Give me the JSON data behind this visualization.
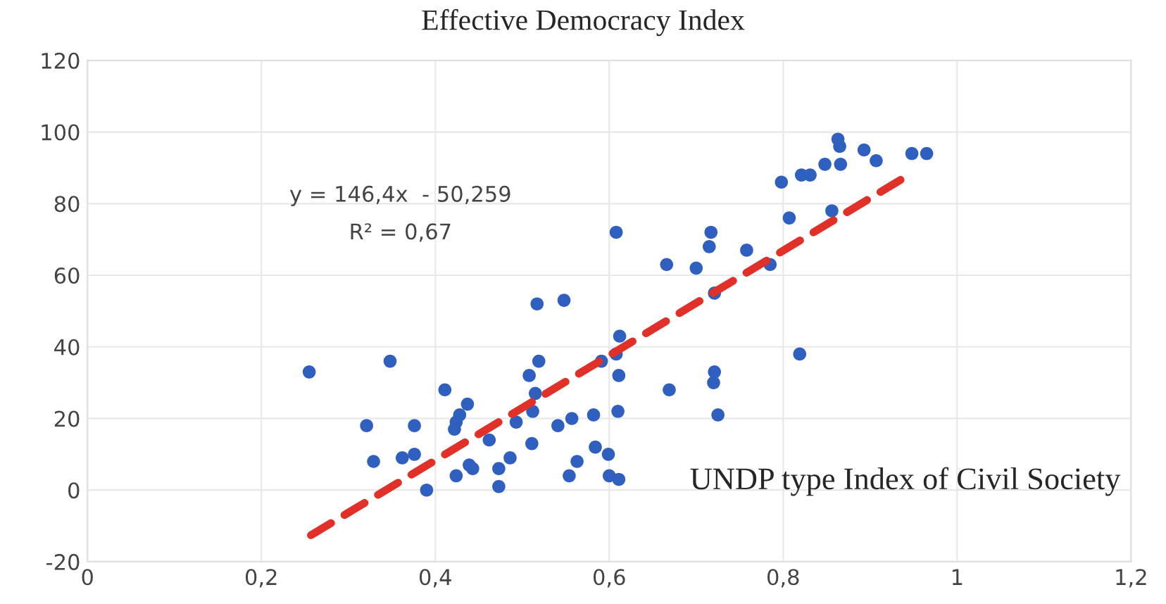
{
  "chart_data": {
    "type": "scatter",
    "title": "Effective Democracy Index",
    "xlabel": "UNDP type Index of Civil Society",
    "annotations": [
      "y = 146,4x  - 50,259",
      "R² = 0,67"
    ],
    "series": [
      {
        "color": "#2f5fbf",
        "marker": "circle",
        "x": [
          0.255,
          0.321,
          0.329,
          0.348,
          0.362,
          0.376,
          0.376,
          0.39,
          0.411,
          0.422,
          0.424,
          0.428,
          0.437,
          0.424,
          0.439,
          0.443,
          0.462,
          0.473,
          0.473,
          0.486,
          0.493,
          0.508,
          0.512,
          0.511,
          0.515,
          0.517,
          0.519,
          0.541,
          0.548,
          0.554,
          0.557,
          0.563,
          0.582,
          0.584,
          0.591,
          0.599,
          0.6,
          0.608,
          0.608,
          0.61,
          0.611,
          0.612,
          0.611,
          0.666,
          0.669,
          0.7,
          0.715,
          0.717,
          0.72,
          0.721,
          0.721,
          0.725,
          0.758,
          0.785,
          0.798,
          0.807,
          0.819,
          0.821,
          0.831,
          0.848,
          0.856,
          0.863,
          0.865,
          0.866,
          0.893,
          0.907,
          0.948,
          0.965
        ],
        "values": [
          33,
          18,
          8,
          36,
          9,
          18,
          10,
          0,
          28,
          17,
          19,
          21,
          24,
          4,
          7,
          6,
          14,
          6,
          1,
          9,
          19,
          32,
          22,
          13,
          27,
          52,
          36,
          18,
          53,
          4,
          20,
          8,
          21,
          12,
          36,
          10,
          4,
          38,
          72,
          22,
          32,
          43,
          3,
          63,
          28,
          62,
          68,
          72,
          30,
          33,
          55,
          21,
          67,
          63,
          86,
          76,
          38,
          88,
          88,
          91,
          78,
          98,
          96,
          91,
          95,
          92,
          94,
          94
        ]
      },
      {
        "type": "line",
        "color": "#e03028",
        "marker": "none",
        "line_style": "dashed",
        "x": [
          0.257,
          0.945
        ],
        "values": [
          -12.6,
          88.1
        ]
      }
    ],
    "xlim": [
      0,
      1.2
    ],
    "xticks": [
      0,
      {
        "value": 0.2,
        "label": "0,2"
      },
      {
        "value": 0.4,
        "label": "0,4"
      },
      {
        "value": 0.6,
        "label": "0,6"
      },
      {
        "value": 0.8,
        "label": "0,8"
      },
      1,
      {
        "value": 1.2,
        "label": "1,2"
      }
    ],
    "ylim": [
      -20,
      120
    ],
    "yticks": [
      -20,
      0,
      20,
      40,
      60,
      80,
      100,
      120
    ],
    "grid": true
  }
}
